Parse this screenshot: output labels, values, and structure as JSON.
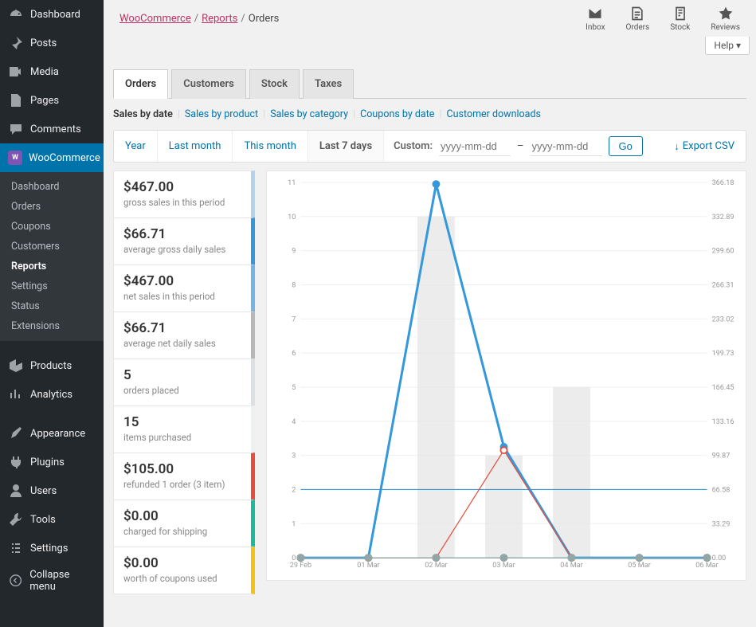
{
  "sidebar": {
    "items": [
      {
        "label": "Dashboard",
        "icon": "dash"
      },
      {
        "label": "Posts",
        "icon": "pin"
      },
      {
        "label": "Media",
        "icon": "media"
      },
      {
        "label": "Pages",
        "icon": "page"
      },
      {
        "label": "Comments",
        "icon": "comment"
      },
      {
        "label": "WooCommerce",
        "icon": "woo",
        "current": true
      },
      {
        "label": "Products",
        "icon": "products"
      },
      {
        "label": "Analytics",
        "icon": "analytics"
      },
      {
        "label": "Appearance",
        "icon": "appearance"
      },
      {
        "label": "Plugins",
        "icon": "plugin"
      },
      {
        "label": "Users",
        "icon": "users"
      },
      {
        "label": "Tools",
        "icon": "tools"
      },
      {
        "label": "Settings",
        "icon": "settings"
      },
      {
        "label": "Collapse menu",
        "icon": "collapse"
      }
    ],
    "submenu": [
      "Dashboard",
      "Orders",
      "Coupons",
      "Customers",
      "Reports",
      "Settings",
      "Status",
      "Extensions"
    ],
    "submenu_active": "Reports"
  },
  "breadcrumb": {
    "parts": [
      "WooCommerce",
      "Reports",
      "Orders"
    ]
  },
  "top_icons": [
    {
      "label": "Inbox",
      "name": "inbox"
    },
    {
      "label": "Orders",
      "name": "orders"
    },
    {
      "label": "Stock",
      "name": "stock"
    },
    {
      "label": "Reviews",
      "name": "reviews"
    }
  ],
  "help_label": "Help ▾",
  "tabs": [
    "Orders",
    "Customers",
    "Stock",
    "Taxes"
  ],
  "tab_active": "Orders",
  "subnav": {
    "label": "Sales by date",
    "items": [
      "Sales by product",
      "Sales by category",
      "Coupons by date",
      "Customer downloads"
    ]
  },
  "range": {
    "tabs": [
      "Year",
      "Last month",
      "This month",
      "Last 7 days"
    ],
    "active": "Last 7 days",
    "custom_label": "Custom:",
    "placeholder": "yyyy-mm-dd",
    "dash": "–",
    "go": "Go",
    "export": "Export CSV"
  },
  "stats": [
    {
      "value": "$467.00",
      "desc": "gross sales in this period",
      "color": "#b1d4ea"
    },
    {
      "value": "$66.71",
      "desc": "average gross daily sales",
      "color": "#3498db"
    },
    {
      "value": "$467.00",
      "desc": "net sales in this period",
      "color": "#73b5e4"
    },
    {
      "value": "$66.71",
      "desc": "average net daily sales",
      "color": "#b7b7b7"
    },
    {
      "value": "5",
      "desc": "orders placed",
      "color": "#dbe1e3"
    },
    {
      "value": "15",
      "desc": "items purchased",
      "color": "#ecf0f1"
    },
    {
      "value": "$105.00",
      "desc": "refunded 1 order (3 item)",
      "color": "#e74c3c"
    },
    {
      "value": "$0.00",
      "desc": "charged for shipping",
      "color": "#1abc9c"
    },
    {
      "value": "$0.00",
      "desc": "worth of coupons used",
      "color": "#f1c40f"
    }
  ],
  "chart": {
    "x_categories": [
      "29 Feb",
      "01 Mar",
      "02 Mar",
      "03 Mar",
      "04 Mar",
      "05 Mar",
      "06 Mar"
    ],
    "y_left": {
      "min": 0,
      "max": 11,
      "step": 1
    },
    "y_right": {
      "min": 0,
      "max": 366.18,
      "labels": [
        "0.00",
        "33.29",
        "66.58",
        "99.87",
        "133.16",
        "166.45",
        "199.73",
        "233.02",
        "266.31",
        "299.60",
        "332.89",
        "366.18"
      ]
    },
    "bars": [
      0,
      0,
      10,
      3,
      5,
      0,
      0
    ],
    "bars_color": "#e4e4e4",
    "series": [
      {
        "name": "gross",
        "color": "#3498db",
        "width": 3,
        "values": [
          0,
          0,
          10.95,
          3.25,
          0,
          0,
          0
        ],
        "markers": "circle"
      },
      {
        "name": "avg",
        "color": "#3498db",
        "width": 1.2,
        "values": [
          2,
          2,
          2,
          2,
          2,
          2,
          2
        ],
        "markers": "none"
      },
      {
        "name": "refund",
        "color": "#e74c3c",
        "width": 1.2,
        "values": [
          0,
          0,
          0,
          3.15,
          0,
          0,
          0
        ],
        "markers": "circle-open"
      },
      {
        "name": "shipping",
        "color": "#1abc9c",
        "width": 1.2,
        "values": [
          0,
          0,
          0,
          0,
          0,
          0,
          0
        ],
        "markers": "circle-open"
      },
      {
        "name": "net",
        "color": "#95a5a6",
        "width": 1.2,
        "values": [
          0,
          0,
          0,
          0,
          0,
          0,
          0
        ],
        "markers": "circle"
      }
    ],
    "bg": "#ffffff",
    "grid": "#efefef",
    "label_color": "#999999",
    "label_fontsize": 9
  }
}
